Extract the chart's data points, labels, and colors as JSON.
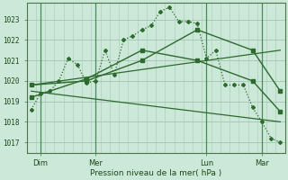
{
  "background_color": "#cce8d8",
  "grid_color": "#a8c8b8",
  "line_color": "#2d6a2d",
  "title": "Pression niveau de la mer( hPa )",
  "ylabel_values": [
    1017,
    1018,
    1019,
    1020,
    1021,
    1022,
    1023
  ],
  "ylim": [
    1016.5,
    1023.8
  ],
  "xlim": [
    -0.5,
    27.5
  ],
  "x_ticks_labels": [
    "Dim",
    "Mer",
    "Lun",
    "Mar"
  ],
  "x_ticks_pos": [
    1,
    7,
    19,
    25
  ],
  "vlines": [
    1,
    7,
    19,
    25
  ],
  "line1_x": [
    0,
    1,
    2,
    3,
    4,
    5,
    6,
    7,
    8,
    9,
    10,
    11,
    12,
    13,
    14,
    15,
    16,
    17,
    18,
    19,
    20,
    21,
    22,
    23,
    24,
    25,
    26,
    27
  ],
  "line1_y": [
    1018.6,
    1019.4,
    1019.5,
    1020.0,
    1021.1,
    1020.8,
    1019.9,
    1020.0,
    1021.5,
    1020.3,
    1022.0,
    1022.2,
    1022.5,
    1022.7,
    1023.4,
    1023.6,
    1022.9,
    1022.9,
    1022.8,
    1021.1,
    1021.5,
    1019.8,
    1019.8,
    1019.8,
    1018.7,
    1018.0,
    1017.2,
    1017.0
  ],
  "line2_x": [
    0,
    6,
    12,
    18,
    24,
    27
  ],
  "line2_y": [
    1019.8,
    1020.0,
    1021.0,
    1022.5,
    1021.5,
    1019.5
  ],
  "line3_x": [
    0,
    6,
    12,
    18,
    24,
    27
  ],
  "line3_y": [
    1019.2,
    1020.1,
    1021.5,
    1021.0,
    1020.0,
    1018.5
  ],
  "trend1_x": [
    0,
    27
  ],
  "trend1_y": [
    1019.8,
    1021.5
  ],
  "trend2_x": [
    0,
    27
  ],
  "trend2_y": [
    1019.5,
    1018.0
  ]
}
